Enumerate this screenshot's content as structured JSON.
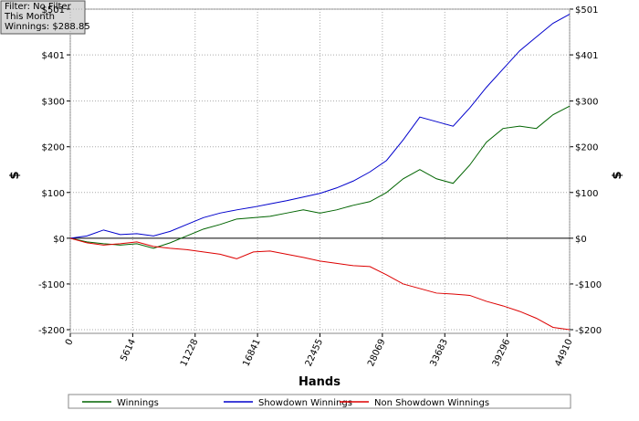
{
  "info": {
    "lines": [
      "Filter: No Filter",
      "This Month",
      "Winnings: $288.85"
    ]
  },
  "chart_data": {
    "type": "line",
    "x_label": "Hands",
    "y_label": "$",
    "y2_label": "$",
    "x": [
      0,
      1497,
      2994,
      4491,
      5988,
      7485,
      8982,
      10479,
      11976,
      13473,
      14970,
      16467,
      17964,
      19461,
      20958,
      22455,
      23952,
      25449,
      26946,
      28443,
      29940,
      31437,
      32934,
      34431,
      35928,
      37425,
      38922,
      40419,
      41916,
      43413,
      44910
    ],
    "series": [
      {
        "name": "Winnings",
        "color": "#006400",
        "values": [
          0,
          -8,
          -12,
          -15,
          -12,
          -22,
          -10,
          5,
          20,
          30,
          42,
          45,
          48,
          55,
          62,
          55,
          62,
          72,
          80,
          100,
          130,
          150,
          130,
          120,
          160,
          210,
          240,
          245,
          240,
          270,
          289
        ]
      },
      {
        "name": "Showdown Winnings",
        "color": "#0000cc",
        "values": [
          0,
          5,
          18,
          8,
          10,
          5,
          15,
          30,
          45,
          55,
          62,
          68,
          75,
          82,
          90,
          98,
          110,
          125,
          145,
          170,
          215,
          265,
          255,
          245,
          285,
          330,
          370,
          410,
          440,
          470,
          490
        ]
      },
      {
        "name": "Non Showdown Winnings",
        "color": "#dd0000",
        "values": [
          0,
          -10,
          -15,
          -12,
          -8,
          -18,
          -22,
          -25,
          -30,
          -35,
          -45,
          -30,
          -28,
          -35,
          -42,
          -50,
          -55,
          -60,
          -62,
          -80,
          -100,
          -110,
          -120,
          -122,
          -125,
          -138,
          -148,
          -160,
          -175,
          -195,
          -200
        ]
      }
    ],
    "xlim": [
      0,
      44910
    ],
    "xticks": [
      0,
      5614,
      11228,
      16841,
      22455,
      28069,
      33683,
      39296,
      44910
    ],
    "ylim": [
      -208,
      501
    ],
    "yticks": [
      {
        "value": -200,
        "label": "-$200"
      },
      {
        "value": -100,
        "label": "-$100"
      },
      {
        "value": 0,
        "label": "$0"
      },
      {
        "value": 100,
        "label": "$100"
      },
      {
        "value": 200,
        "label": "$200"
      },
      {
        "value": 300,
        "label": "$300"
      },
      {
        "value": 401,
        "label": "$401"
      },
      {
        "value": 501,
        "label": "$501"
      }
    ],
    "grid": true
  }
}
